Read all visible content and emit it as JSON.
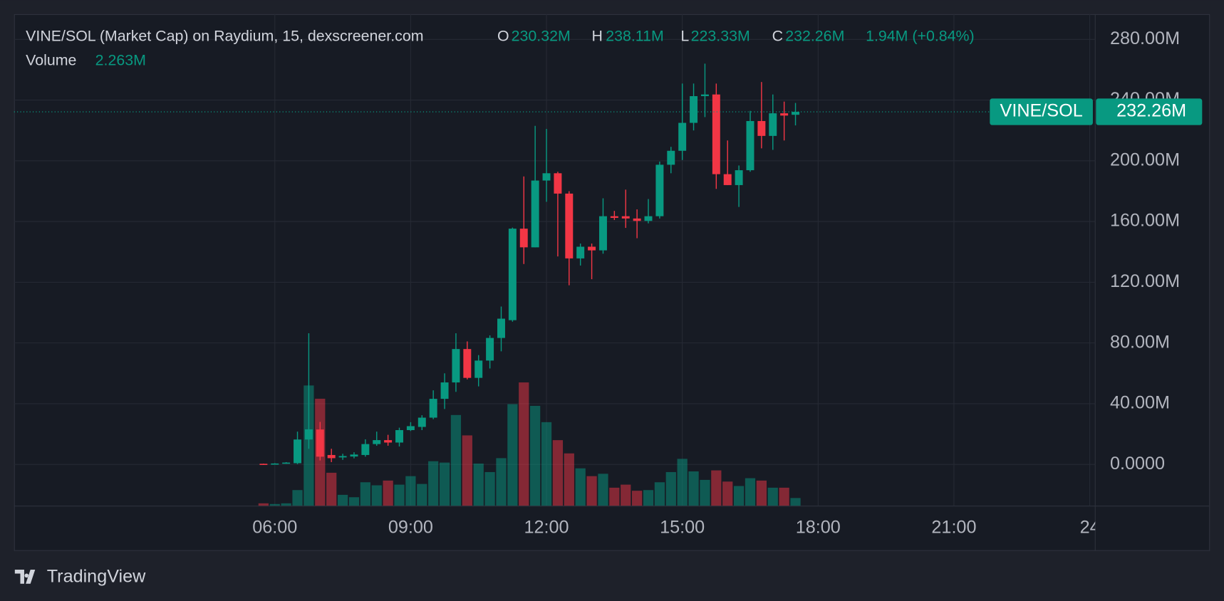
{
  "chart_data": {
    "type": "candlestick",
    "title": "VINE/SOL (Market Cap) on Raydium, 15, dexscreener.com",
    "ohlc_legend": [
      {
        "key": "O",
        "label": "230.32M"
      },
      {
        "key": "H",
        "label": "238.11M"
      },
      {
        "key": "L",
        "label": "223.33M"
      },
      {
        "key": "C",
        "label": "232.26M"
      }
    ],
    "change_label": "1.94M (+0.84%)",
    "volume_title": "Volume",
    "volume_label": "2.263M",
    "last_price": {
      "symbol": "VINE/SOL",
      "label": "232.26M"
    },
    "x": [
      5.75,
      6,
      6.25,
      6.5,
      6.75,
      7,
      7.25,
      7.5,
      7.75,
      8,
      8.25,
      8.5,
      8.75,
      9,
      9.25,
      9.5,
      9.75,
      10,
      10.25,
      10.5,
      10.75,
      11,
      11.25,
      11.5,
      11.75,
      12,
      12.25,
      12.5,
      12.75,
      13,
      13.25,
      13.5,
      13.75,
      14,
      14.25,
      14.5,
      14.75,
      15,
      15.25,
      15.5,
      15.75,
      16,
      16.25,
      16.5,
      16.75,
      17,
      17.25,
      17.5
    ],
    "open": [
      0.4,
      0.2,
      0.6,
      0.8,
      16.4,
      23,
      6.2,
      4.6,
      5.2,
      6.2,
      13.4,
      16,
      14.4,
      22.6,
      24.7,
      30.8,
      43.2,
      54,
      76,
      57,
      68.4,
      83.3,
      95,
      155.3,
      143,
      187,
      191.8,
      178.4,
      135.7,
      143.4,
      141,
      163.5,
      163.5,
      162,
      160.4,
      163.5,
      197.4,
      206.6,
      225,
      242.6,
      243.7,
      191.2,
      184,
      193.8,
      226.2,
      216.4,
      231.3,
      230.32
    ],
    "high": [
      0.5,
      0.8,
      1.5,
      21.6,
      86.4,
      28,
      10.3,
      7,
      8,
      16.5,
      21.6,
      19.5,
      24.2,
      27.8,
      32.4,
      48.8,
      60,
      86.4,
      81,
      72,
      85,
      104,
      156,
      189.7,
      223,
      221,
      192.8,
      180,
      145.5,
      145.5,
      175.3,
      167,
      181,
      168,
      174.8,
      199.5,
      209.2,
      250.9,
      250.9,
      264,
      250.9,
      213.4,
      196.9,
      232.9,
      251.9,
      243.7,
      239,
      238.11
    ],
    "low": [
      0.2,
      0.1,
      0.5,
      0.2,
      10.3,
      2.6,
      1.5,
      3,
      4,
      5.1,
      12.3,
      12.3,
      11.8,
      22,
      22.6,
      29.8,
      36.5,
      47.8,
      56,
      51.4,
      63.2,
      74.5,
      94,
      132,
      143,
      173,
      137,
      118,
      131,
      122,
      138.8,
      161,
      155.8,
      149,
      158.8,
      162,
      191.8,
      200.5,
      220,
      228.8,
      181.5,
      184,
      169.6,
      192.8,
      208.2,
      207.2,
      213.4,
      223.33
    ],
    "close": [
      0.2,
      0.6,
      1.2,
      16.4,
      23.1,
      5.1,
      4.1,
      5.5,
      6.5,
      13.4,
      16,
      14.4,
      22.6,
      25.2,
      30.8,
      43.2,
      54,
      76,
      57,
      68.4,
      83.3,
      96,
      155.3,
      143,
      187,
      191.8,
      178.4,
      135.7,
      143.4,
      141,
      163.5,
      162.4,
      162,
      160.4,
      163.5,
      197.4,
      206.6,
      225,
      242.6,
      243.7,
      191.2,
      184,
      193.8,
      226.2,
      216.4,
      231.3,
      229.8,
      232.26
    ],
    "volume": [
      0.7,
      0.5,
      0.7,
      4.6,
      35.4,
      31.5,
      9.7,
      3.2,
      2.5,
      6.9,
      6.0,
      7.4,
      6.2,
      8.7,
      6.4,
      13.1,
      12.7,
      26.7,
      20.7,
      12.4,
      9.9,
      14.0,
      29.9,
      36.3,
      29.4,
      24.6,
      19.3,
      15.4,
      11.0,
      8.7,
      9.4,
      5.3,
      6.2,
      4.4,
      4.6,
      6.9,
      9.9,
      13.8,
      10.1,
      7.6,
      10.4,
      7.1,
      5.8,
      8.1,
      7.4,
      5.3,
      5.3,
      2.263
    ],
    "xlim": [
      0.24,
      24.12
    ],
    "xticks": [
      {
        "value": 6,
        "label": "06:00"
      },
      {
        "value": 9,
        "label": "09:00"
      },
      {
        "value": 12,
        "label": "12:00"
      },
      {
        "value": 15,
        "label": "15:00"
      },
      {
        "value": 18,
        "label": "18:00"
      },
      {
        "value": 21,
        "label": "21:00"
      },
      {
        "value": 24,
        "label": "24"
      }
    ],
    "ylim": [
      -27.2,
      296.6
    ],
    "yticks": [
      {
        "value": 0,
        "label": "0.0000"
      },
      {
        "value": 40,
        "label": "40.00M"
      },
      {
        "value": 80,
        "label": "80.00M"
      },
      {
        "value": 120,
        "label": "120.00M"
      },
      {
        "value": 160,
        "label": "160.00M"
      },
      {
        "value": 200,
        "label": "200.00M"
      },
      {
        "value": 240,
        "label": "240.00M"
      },
      {
        "value": 280,
        "label": "280.00M"
      }
    ],
    "grid": true,
    "up_color": "#089981",
    "down_color": "#f23645"
  },
  "footer": {
    "brand": "TradingView"
  }
}
